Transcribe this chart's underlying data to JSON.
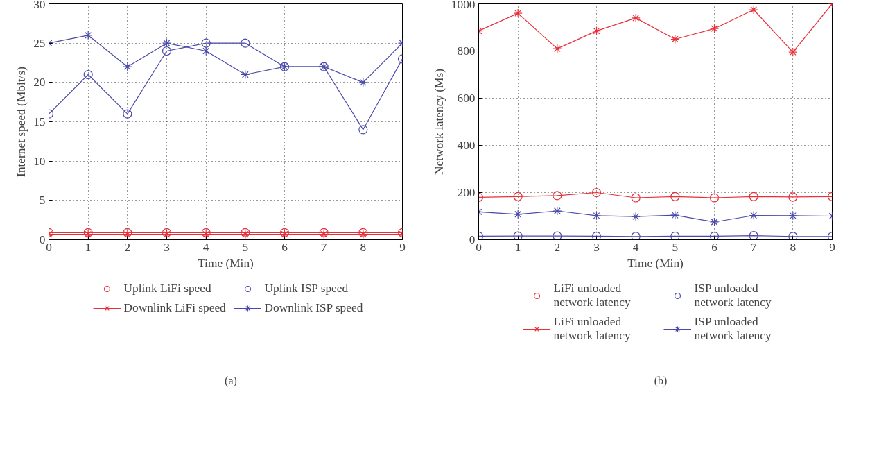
{
  "chart_data": [
    {
      "type": "line",
      "xlabel": "Time (Min)",
      "ylabel": "Internet speed (Mbit/s)",
      "annotations": [
        "(a)"
      ],
      "x": [
        0,
        1,
        2,
        3,
        4,
        5,
        6,
        7,
        8,
        9
      ],
      "xlim": [
        0,
        9
      ],
      "xticks": [
        0,
        1,
        2,
        3,
        4,
        5,
        6,
        7,
        8,
        9
      ],
      "ylim": [
        0,
        30
      ],
      "yticks": [
        0,
        5,
        10,
        15,
        20,
        25,
        30
      ],
      "grid": true,
      "legend": "bottom",
      "line_style": "solid",
      "series": [
        {
          "name": "Uplink LiFi speed",
          "color": "#e8303a",
          "marker": "circle",
          "values": [
            0.9,
            0.9,
            0.9,
            0.9,
            0.9,
            0.9,
            0.9,
            0.9,
            0.9,
            0.9
          ]
        },
        {
          "name": "Downlink LiFi speed",
          "color": "#e8303a",
          "marker": "cross",
          "values": [
            0.7,
            0.7,
            0.7,
            0.7,
            0.7,
            0.7,
            0.7,
            0.7,
            0.7,
            0.7
          ]
        },
        {
          "name": "Uplink ISP speed",
          "color": "#4a4aaa",
          "marker": "circle",
          "values": [
            16,
            21,
            16,
            24,
            25,
            25,
            22,
            22,
            14,
            23
          ]
        },
        {
          "name": "Downlink ISP speed",
          "color": "#4a4aaa",
          "marker": "cross",
          "values": [
            25,
            26,
            22,
            25,
            24,
            21,
            22,
            22,
            20,
            25
          ]
        }
      ]
    },
    {
      "type": "line",
      "xlabel": "Time (Min)",
      "ylabel": "Network latency (Ms)",
      "annotations": [
        "(b)"
      ],
      "x": [
        0,
        1,
        2,
        3,
        4,
        5,
        6,
        7,
        8,
        9
      ],
      "xlim": [
        0,
        9
      ],
      "xticks": [
        0,
        1,
        2,
        3,
        4,
        5,
        6,
        7,
        8,
        9
      ],
      "ylim": [
        0,
        1000
      ],
      "yticks": [
        0,
        200,
        400,
        600,
        800,
        1000
      ],
      "grid": true,
      "legend": "bottom",
      "line_style": "solid",
      "series": [
        {
          "name": "LiFi unloaded network latency",
          "color": "#e8303a",
          "marker": "circle",
          "values": [
            180,
            183,
            187,
            200,
            178,
            183,
            178,
            183,
            181,
            183
          ]
        },
        {
          "name": "LiFi unloaded network latency",
          "color": "#e8303a",
          "marker": "cross",
          "values": [
            885,
            960,
            810,
            885,
            940,
            850,
            895,
            975,
            795,
            1000
          ]
        },
        {
          "name": "ISP unloaded network latency",
          "color": "#4a4aaa",
          "marker": "circle",
          "values": [
            15,
            16,
            16,
            15,
            14,
            15,
            15,
            17,
            14,
            14
          ]
        },
        {
          "name": "ISP unloaded network latency",
          "color": "#4a4aaa",
          "marker": "cross",
          "values": [
            118,
            108,
            122,
            102,
            98,
            104,
            75,
            103,
            102,
            100
          ]
        }
      ]
    }
  ]
}
